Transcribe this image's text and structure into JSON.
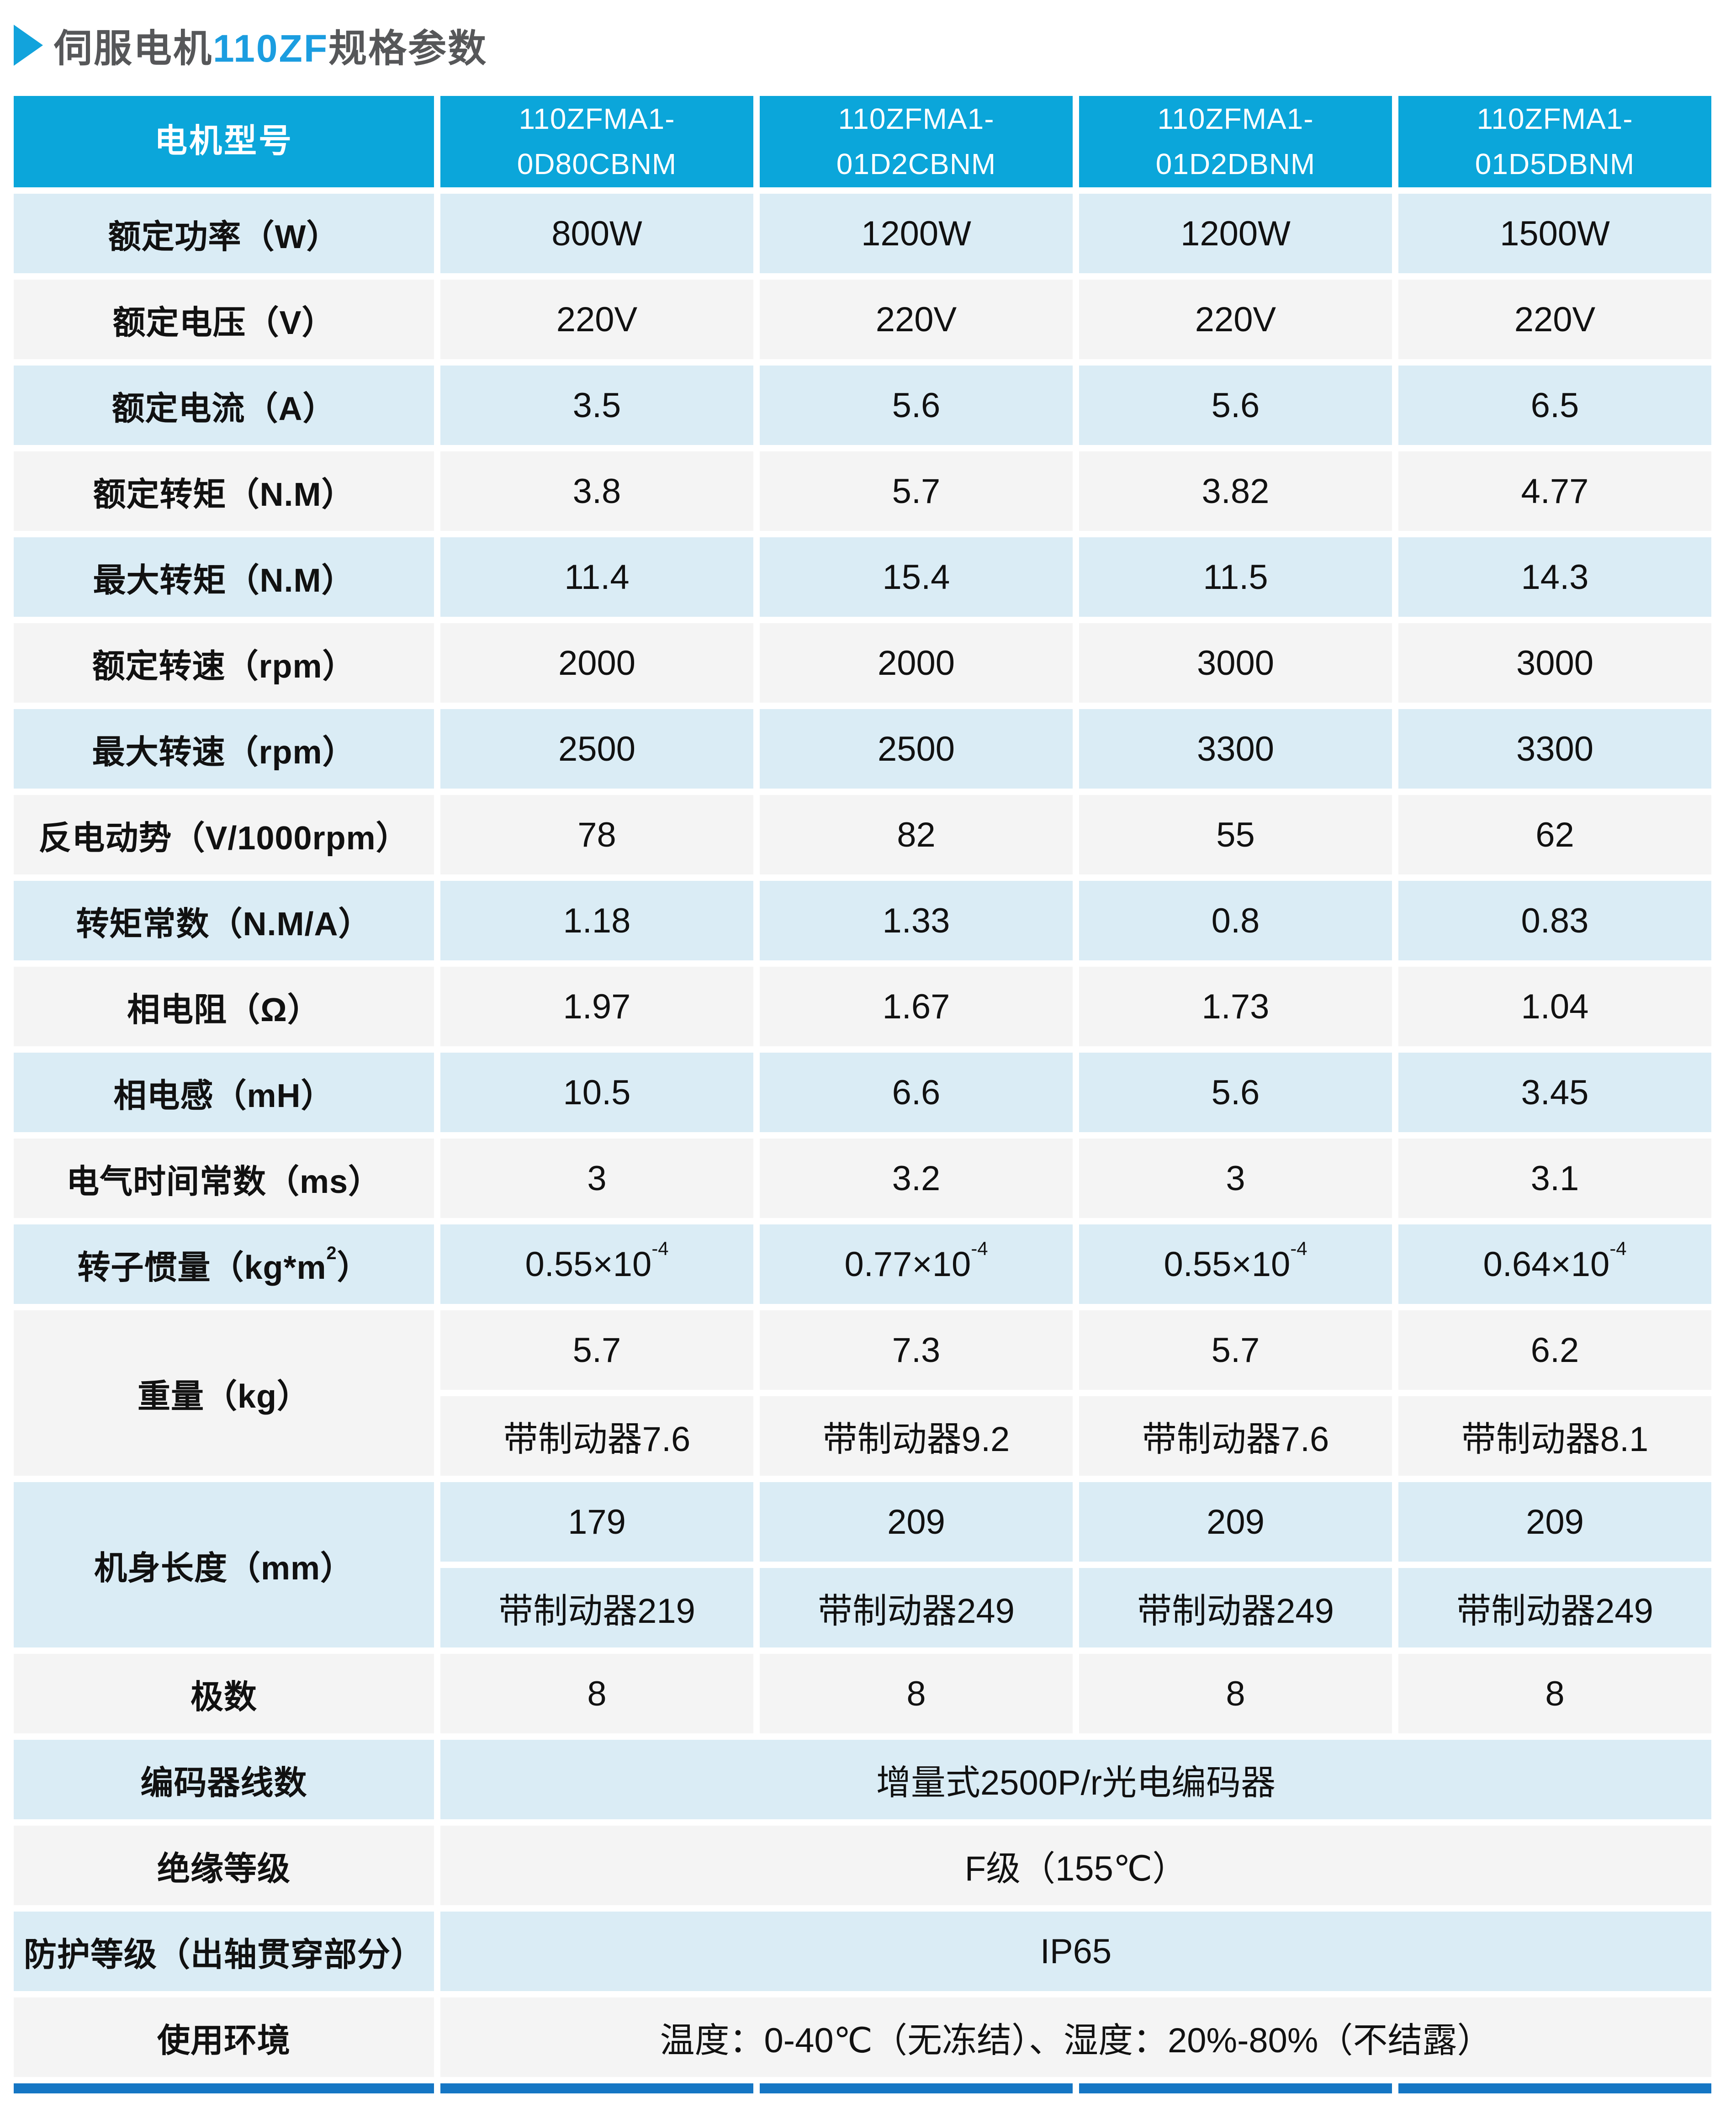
{
  "title": {
    "arrow_icon": "right-triangle",
    "prefix": "伺服电机",
    "highlight": "110ZF",
    "suffix": "规格参数"
  },
  "colors": {
    "header_bg": "#0ba6da",
    "row_blue": "#daecf5",
    "row_gray": "#f4f4f4",
    "bottom_bar": "#1576c4",
    "title_accent": "#1b9de0",
    "title_text": "#565759"
  },
  "table": {
    "corner_label": "电机型号",
    "models": [
      {
        "line1": "110ZFMA1-",
        "line2": "0D80CBNM"
      },
      {
        "line1": "110ZFMA1-",
        "line2": "01D2CBNM"
      },
      {
        "line1": "110ZFMA1-",
        "line2": "01D2DBNM"
      },
      {
        "line1": "110ZFMA1-",
        "line2": "01D5DBNM"
      }
    ],
    "rows": [
      {
        "label": "额定功率（W）",
        "values": [
          "800W",
          "1200W",
          "1200W",
          "1500W"
        ]
      },
      {
        "label": "额定电压（V）",
        "values": [
          "220V",
          "220V",
          "220V",
          "220V"
        ]
      },
      {
        "label": "额定电流（A）",
        "values": [
          "3.5",
          "5.6",
          "5.6",
          "6.5"
        ]
      },
      {
        "label": "额定转矩（N.M）",
        "values": [
          "3.8",
          "5.7",
          "3.82",
          "4.77"
        ]
      },
      {
        "label": "最大转矩（N.M）",
        "values": [
          "11.4",
          "15.4",
          "11.5",
          "14.3"
        ]
      },
      {
        "label": "额定转速（rpm）",
        "values": [
          "2000",
          "2000",
          "3000",
          "3000"
        ]
      },
      {
        "label": "最大转速（rpm）",
        "values": [
          "2500",
          "2500",
          "3300",
          "3300"
        ]
      },
      {
        "label": "反电动势（V/1000rpm）",
        "values": [
          "78",
          "82",
          "55",
          "62"
        ]
      },
      {
        "label": "转矩常数（N.M/A）",
        "values": [
          "1.18",
          "1.33",
          "0.8",
          "0.83"
        ]
      },
      {
        "label": "相电阻（Ω）",
        "values": [
          "1.97",
          "1.67",
          "1.73",
          "1.04"
        ]
      },
      {
        "label": "相电感（mH）",
        "values": [
          "10.5",
          "6.6",
          "5.6",
          "3.45"
        ]
      },
      {
        "label": "电气时间常数（ms）",
        "values": [
          "3",
          "3.2",
          "3",
          "3.1"
        ]
      }
    ],
    "inertia": {
      "label_pre": "转子惯量（kg*m",
      "label_sup": "2",
      "label_post": "）",
      "values": [
        {
          "base": "0.55×10",
          "sup": "-4"
        },
        {
          "base": "0.77×10",
          "sup": "-4"
        },
        {
          "base": "0.55×10",
          "sup": "-4"
        },
        {
          "base": "0.64×10",
          "sup": "-4"
        }
      ]
    },
    "weight": {
      "label": "重量（kg）",
      "plain": [
        "5.7",
        "7.3",
        "5.7",
        "6.2"
      ],
      "with_brake": [
        "带制动器7.6",
        "带制动器9.2",
        "带制动器7.6",
        "带制动器8.1"
      ]
    },
    "body_length": {
      "label": "机身长度（mm）",
      "plain": [
        "179",
        "209",
        "209",
        "209"
      ],
      "with_brake": [
        "带制动器219",
        "带制动器249",
        "带制动器249",
        "带制动器249"
      ]
    },
    "poles": {
      "label": "极数",
      "values": [
        "8",
        "8",
        "8",
        "8"
      ]
    },
    "full_rows": [
      {
        "label": "编码器线数",
        "value": "增量式2500P/r光电编码器"
      },
      {
        "label": "绝缘等级",
        "value": "F级（155℃）"
      },
      {
        "label": "防护等级（出轴贯穿部分）",
        "value": "IP65"
      },
      {
        "label": "使用环境",
        "value": "温度：0-40℃（无冻结）、湿度：20%-80%（不结露）"
      }
    ]
  }
}
